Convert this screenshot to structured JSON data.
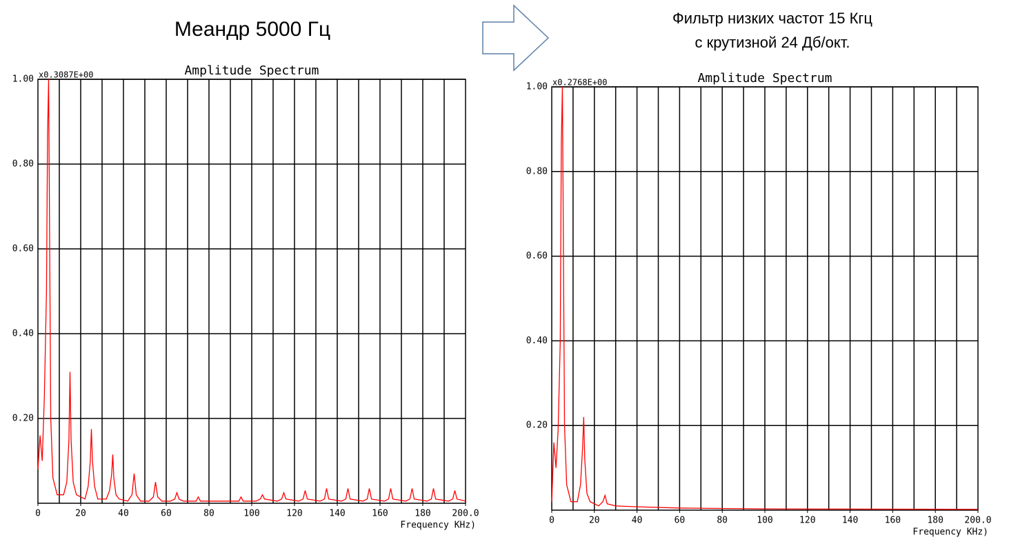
{
  "chart_data": [
    {
      "type": "line",
      "caption": [
        "Меандр 5000 Гц"
      ],
      "title": "Amplitude Spectrum",
      "scale_note": "x0.3087E+00",
      "x_label": "Frequency KHz)",
      "color": "#ff0000",
      "grid": true,
      "xlim": [
        0,
        200
      ],
      "ylim": [
        0,
        1
      ],
      "xticks": [
        0,
        20,
        40,
        60,
        80,
        100,
        120,
        140,
        160,
        180,
        {
          "value": 200,
          "label": "200.0"
        }
      ],
      "xgrid": [
        10,
        20,
        30,
        40,
        50,
        60,
        70,
        80,
        90,
        100,
        110,
        120,
        130,
        140,
        150,
        160,
        170,
        180,
        190
      ],
      "yticks": [
        {
          "value": 0.2,
          "label": "0.20"
        },
        {
          "value": 0.4,
          "label": "0.40"
        },
        {
          "value": 0.6,
          "label": "0.60"
        },
        {
          "value": 0.8,
          "label": "0.80"
        },
        {
          "value": 1,
          "label": "1.00"
        }
      ],
      "x": [
        0,
        1,
        2,
        3,
        4,
        4.5,
        5,
        5.5,
        6,
        7,
        9,
        12,
        13.5,
        14.5,
        15,
        15.5,
        16.5,
        18,
        22,
        23.5,
        24.5,
        25,
        25.5,
        26.5,
        28,
        32,
        33.5,
        34.5,
        35,
        35.5,
        36.5,
        38,
        42,
        44,
        45,
        46,
        48,
        52,
        54,
        55,
        56,
        58,
        62,
        64,
        65,
        66,
        68,
        74,
        75,
        76,
        82,
        94,
        95,
        96,
        102,
        104,
        105,
        106,
        112,
        114,
        115,
        116,
        122,
        124,
        125,
        126,
        132,
        134,
        135,
        136,
        142,
        144,
        145,
        146,
        152,
        154,
        155,
        156,
        162,
        164,
        165,
        166,
        172,
        174,
        175,
        176,
        182,
        184,
        185,
        186,
        192,
        194,
        195,
        196,
        200
      ],
      "values": [
        0.08,
        0.16,
        0.1,
        0.25,
        0.5,
        0.87,
        1.0,
        0.6,
        0.2,
        0.06,
        0.02,
        0.02,
        0.05,
        0.15,
        0.31,
        0.15,
        0.05,
        0.02,
        0.01,
        0.04,
        0.1,
        0.175,
        0.1,
        0.04,
        0.01,
        0.01,
        0.03,
        0.07,
        0.115,
        0.06,
        0.02,
        0.01,
        0.005,
        0.02,
        0.07,
        0.02,
        0.005,
        0.005,
        0.015,
        0.05,
        0.015,
        0.005,
        0.005,
        0.01,
        0.025,
        0.01,
        0.005,
        0.005,
        0.015,
        0.005,
        0.005,
        0.005,
        0.015,
        0.005,
        0.005,
        0.01,
        0.02,
        0.01,
        0.005,
        0.01,
        0.025,
        0.01,
        0.005,
        0.01,
        0.03,
        0.01,
        0.005,
        0.01,
        0.035,
        0.01,
        0.005,
        0.01,
        0.035,
        0.01,
        0.005,
        0.01,
        0.035,
        0.01,
        0.005,
        0.01,
        0.035,
        0.01,
        0.005,
        0.01,
        0.035,
        0.01,
        0.005,
        0.01,
        0.035,
        0.01,
        0.005,
        0.01,
        0.03,
        0.01,
        0.005
      ]
    },
    {
      "type": "line",
      "caption": [
        "Фильтр низких частот 15 Кгц",
        "с крутизной 24 Дб/окт."
      ],
      "title": "Amplitude Spectrum",
      "scale_note": "x0.2768E+00",
      "x_label": "Frequency KHz)",
      "color": "#ff0000",
      "grid": true,
      "xlim": [
        0,
        200
      ],
      "ylim": [
        0,
        1
      ],
      "xticks": [
        0,
        20,
        40,
        60,
        80,
        100,
        120,
        140,
        160,
        180,
        {
          "value": 200,
          "label": "200.0"
        }
      ],
      "xgrid": [
        10,
        20,
        30,
        40,
        50,
        60,
        70,
        80,
        90,
        100,
        110,
        120,
        130,
        140,
        150,
        160,
        170,
        180,
        190
      ],
      "yticks": [
        {
          "value": 0.2,
          "label": "0.20"
        },
        {
          "value": 0.4,
          "label": "0.40"
        },
        {
          "value": 0.6,
          "label": "0.60"
        },
        {
          "value": 0.8,
          "label": "0.80"
        },
        {
          "value": 1,
          "label": "1.00"
        }
      ],
      "x": [
        0,
        1,
        2,
        3,
        4,
        4.5,
        5,
        5.5,
        6,
        7,
        9,
        12,
        13.5,
        14.5,
        15,
        15.5,
        16.5,
        18,
        22,
        24,
        25,
        26,
        30,
        40,
        60,
        100,
        200
      ],
      "values": [
        0.02,
        0.16,
        0.1,
        0.19,
        0.4,
        0.87,
        1.0,
        0.6,
        0.2,
        0.06,
        0.02,
        0.02,
        0.06,
        0.15,
        0.22,
        0.12,
        0.04,
        0.02,
        0.01,
        0.02,
        0.035,
        0.015,
        0.01,
        0.008,
        0.005,
        0.003,
        0.002
      ]
    }
  ]
}
